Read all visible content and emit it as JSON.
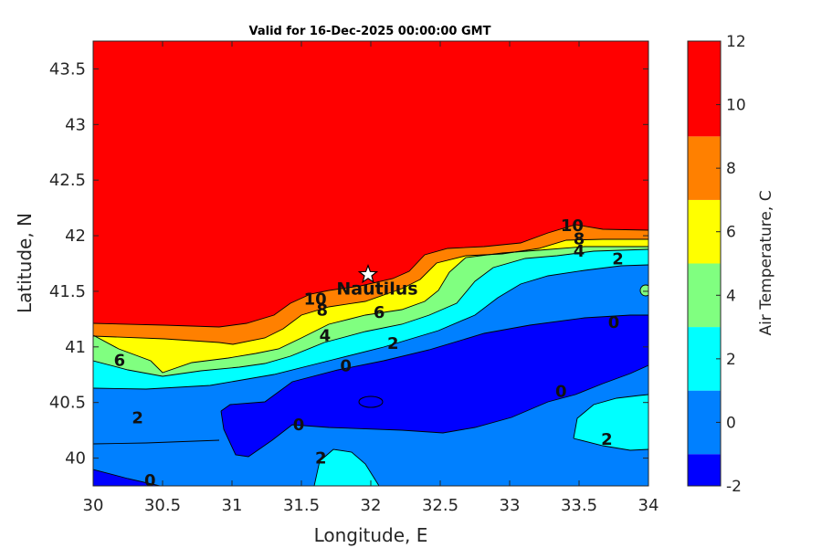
{
  "chart_data": {
    "type": "contour",
    "title": "Valid for 16-Dec-2025 00:00:00 GMT",
    "xlabel": "Longitude, E",
    "ylabel": "Latitude, N",
    "xlim": [
      30,
      34
    ],
    "ylim": [
      39.75,
      43.75
    ],
    "xticks": [
      "30",
      "30.5",
      "31",
      "31.5",
      "32",
      "32.5",
      "33",
      "33.5",
      "34"
    ],
    "yticks": [
      "40",
      "40.5",
      "41",
      "41.5",
      "42",
      "42.5",
      "43",
      "43.5"
    ],
    "colorbar": {
      "label": "Air Temperature, C",
      "ticks": [
        "-2",
        "0",
        "2",
        "4",
        "6",
        "8",
        "10",
        "12"
      ],
      "levels": [
        -2,
        -1,
        1,
        3,
        5,
        7,
        9,
        12
      ],
      "colors": [
        "#0000ff",
        "#0080ff",
        "#00ffff",
        "#80ff80",
        "#ffff00",
        "#ff8000",
        "#ff0000",
        "#800000"
      ]
    },
    "contour_labels": [
      {
        "text": "10",
        "lon": 31.6,
        "lat": 41.43
      },
      {
        "text": "8",
        "lon": 31.65,
        "lat": 41.33
      },
      {
        "text": "6",
        "lon": 32.06,
        "lat": 41.31
      },
      {
        "text": "4",
        "lon": 31.67,
        "lat": 41.1
      },
      {
        "text": "2",
        "lon": 32.16,
        "lat": 41.03
      },
      {
        "text": "0",
        "lon": 31.82,
        "lat": 40.83
      },
      {
        "text": "6",
        "lon": 30.19,
        "lat": 40.88
      },
      {
        "text": "2",
        "lon": 30.32,
        "lat": 40.36
      },
      {
        "text": "0",
        "lon": 31.48,
        "lat": 40.3
      },
      {
        "text": "2",
        "lon": 31.64,
        "lat": 40.0
      },
      {
        "text": "0",
        "lon": 30.41,
        "lat": 39.8
      },
      {
        "text": "10",
        "lon": 33.45,
        "lat": 42.09
      },
      {
        "text": "8",
        "lon": 33.5,
        "lat": 41.97
      },
      {
        "text": "4",
        "lon": 33.5,
        "lat": 41.86
      },
      {
        "text": "2",
        "lon": 33.78,
        "lat": 41.79
      },
      {
        "text": "0",
        "lon": 33.75,
        "lat": 41.22
      },
      {
        "text": "0",
        "lon": 33.37,
        "lat": 40.6
      },
      {
        "text": "2",
        "lon": 33.7,
        "lat": 40.17
      }
    ],
    "station": {
      "name": "Nautilus",
      "lon": 31.98,
      "lat": 41.65
    }
  }
}
